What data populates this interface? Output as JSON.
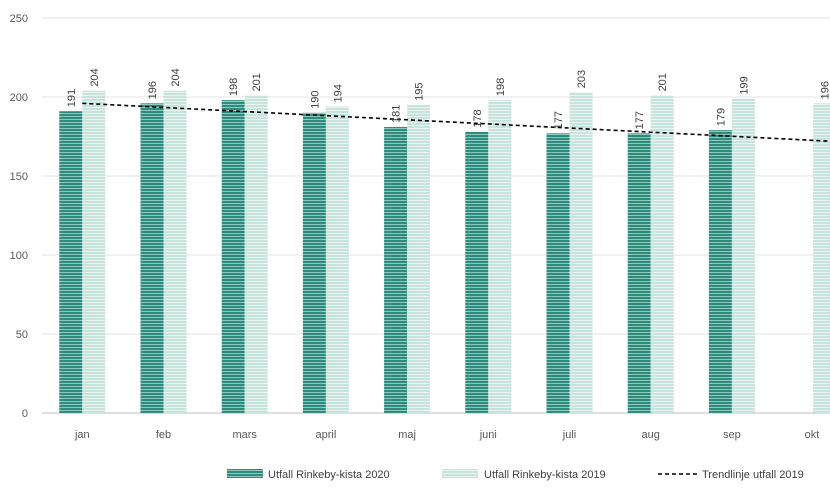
{
  "chart_data": {
    "type": "bar",
    "title": "",
    "xlabel": "",
    "ylabel": "",
    "categories": [
      "jan",
      "feb",
      "mars",
      "april",
      "maj",
      "juni",
      "juli",
      "aug",
      "sep",
      "okt"
    ],
    "series": [
      {
        "name": "Utfall Rinkeby-kista  2020",
        "values": [
          191,
          196,
          198,
          190,
          181,
          178,
          177,
          177,
          179,
          null
        ],
        "color": "#2e8b7e"
      },
      {
        "name": "Utfall Rinkeby-kista  2019",
        "values": [
          204,
          204,
          201,
          194,
          195,
          198,
          203,
          201,
          199,
          196
        ],
        "color": "#b8dcd4"
      }
    ],
    "trendline": {
      "name": "Trendlinje utfall 2019",
      "style": "dashed",
      "color": "#000000",
      "start_value": 196,
      "end_value": 172
    },
    "yticks": [
      "0",
      "50",
      "100",
      "150",
      "200",
      "250"
    ],
    "ylim": [
      0,
      250
    ],
    "grid": true,
    "legend_position": "bottom"
  }
}
